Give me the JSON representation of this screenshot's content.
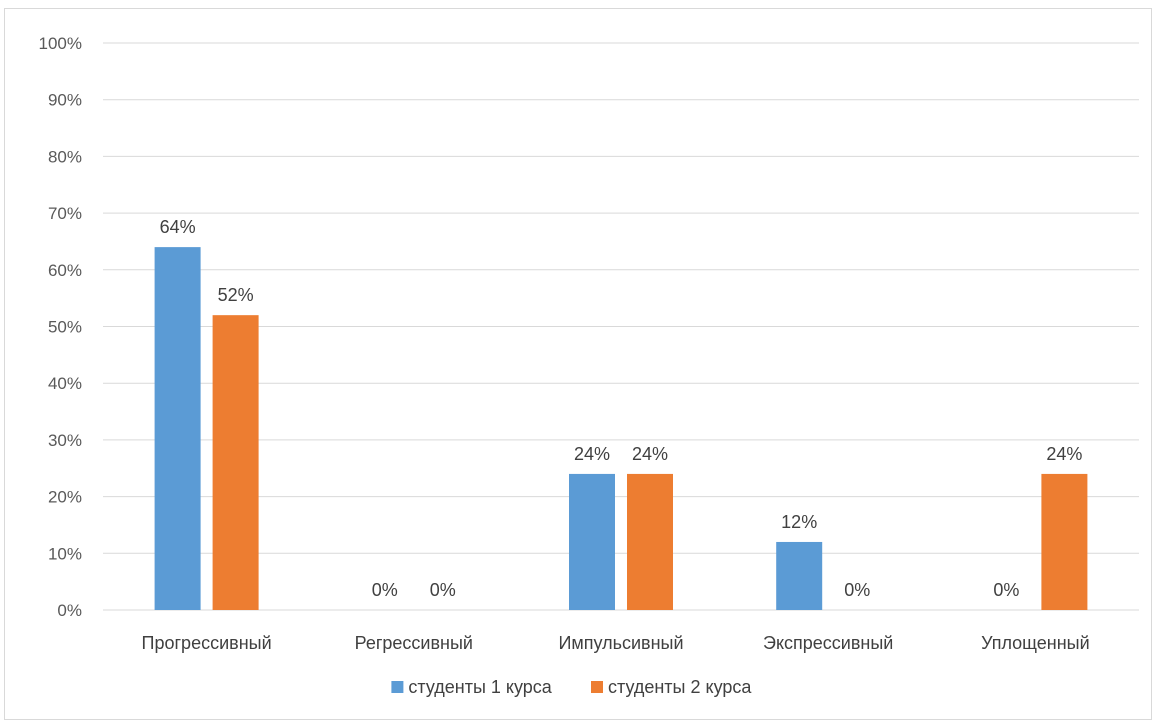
{
  "chart_data": {
    "type": "bar",
    "categories": [
      "Прогрессивный",
      "Регрессивный",
      "Импульсивный",
      "Экспрессивный",
      "Уплощенный"
    ],
    "series": [
      {
        "name": "студенты 1 курса",
        "color": "#5b9bd5",
        "values": [
          64,
          0,
          24,
          12,
          0
        ]
      },
      {
        "name": "студенты 2 курса",
        "color": "#ed7d31",
        "values": [
          52,
          0,
          24,
          0,
          24
        ]
      }
    ],
    "ylim": [
      0,
      100
    ],
    "yticks": [
      "0%",
      "10%",
      "20%",
      "30%",
      "40%",
      "50%",
      "60%",
      "70%",
      "80%",
      "90%",
      "100%"
    ],
    "data_labels": true,
    "grid": true,
    "legend_position": "bottom"
  }
}
